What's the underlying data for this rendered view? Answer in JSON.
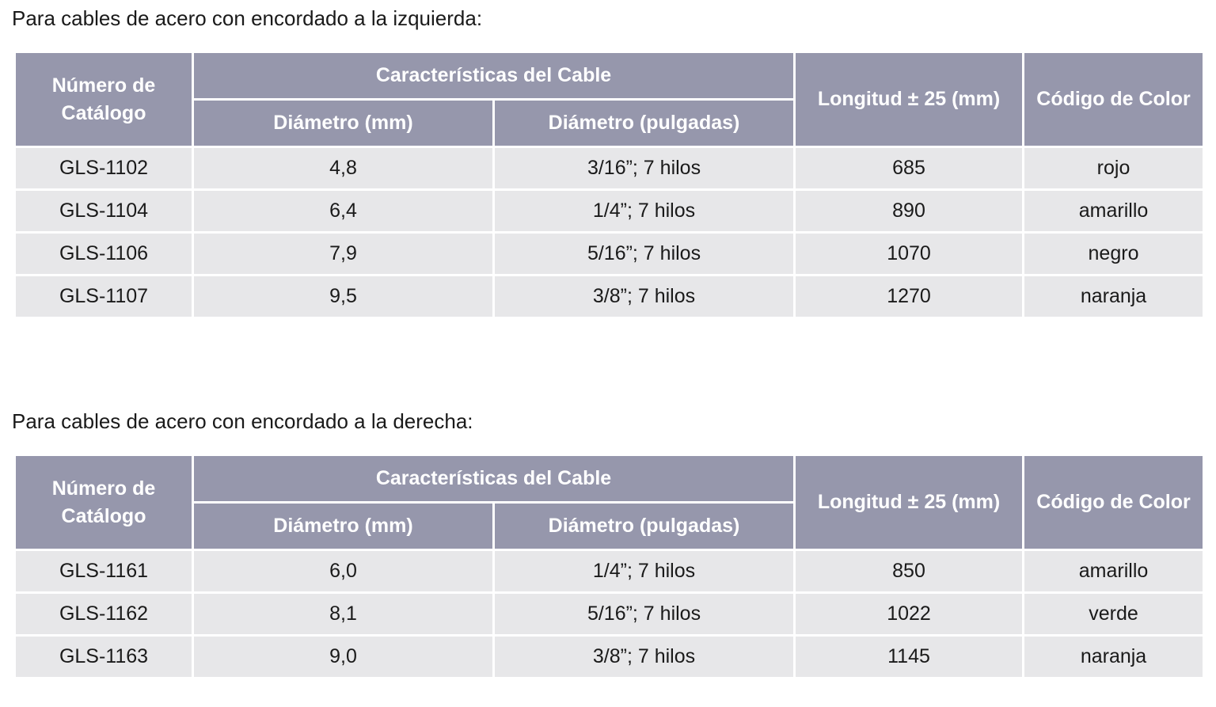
{
  "sections": [
    {
      "title": "Para cables de acero con encordado a la izquierda:",
      "headers": {
        "catalog": "Número de Catálogo",
        "group": "Características del Cable",
        "diam_mm": "Diámetro (mm)",
        "diam_in": "Diámetro (pulgadas)",
        "length": "Longitud ± 25 (mm)",
        "color": "Código de Color"
      },
      "rows": [
        {
          "catalog": "GLS-1102",
          "diam_mm": "4,8",
          "diam_in": "3/16”; 7 hilos",
          "length": "685",
          "color": "rojo"
        },
        {
          "catalog": "GLS-1104",
          "diam_mm": "6,4",
          "diam_in": "1/4”; 7 hilos",
          "length": "890",
          "color": "amarillo"
        },
        {
          "catalog": "GLS-1106",
          "diam_mm": "7,9",
          "diam_in": "5/16”; 7 hilos",
          "length": "1070",
          "color": "negro"
        },
        {
          "catalog": "GLS-1107",
          "diam_mm": "9,5",
          "diam_in": "3/8”; 7 hilos",
          "length": "1270",
          "color": "naranja"
        }
      ]
    },
    {
      "title": "Para cables de acero con encordado a la derecha:",
      "headers": {
        "catalog": "Número de Catálogo",
        "group": "Características del Cable",
        "diam_mm": "Diámetro (mm)",
        "diam_in": "Diámetro (pulgadas)",
        "length": "Longitud ± 25 (mm)",
        "color": "Código de Color"
      },
      "rows": [
        {
          "catalog": "GLS-1161",
          "diam_mm": "6,0",
          "diam_in": "1/4”; 7 hilos",
          "length": "850",
          "color": "amarillo"
        },
        {
          "catalog": "GLS-1162",
          "diam_mm": "8,1",
          "diam_in": "5/16”; 7 hilos",
          "length": "1022",
          "color": "verde"
        },
        {
          "catalog": "GLS-1163",
          "diam_mm": "9,0",
          "diam_in": "3/8”; 7 hilos",
          "length": "1145",
          "color": "naranja"
        }
      ]
    }
  ],
  "colors": {
    "header_bg": "#9697ac",
    "header_text": "#ffffff",
    "row_bg": "#e7e7e9"
  }
}
